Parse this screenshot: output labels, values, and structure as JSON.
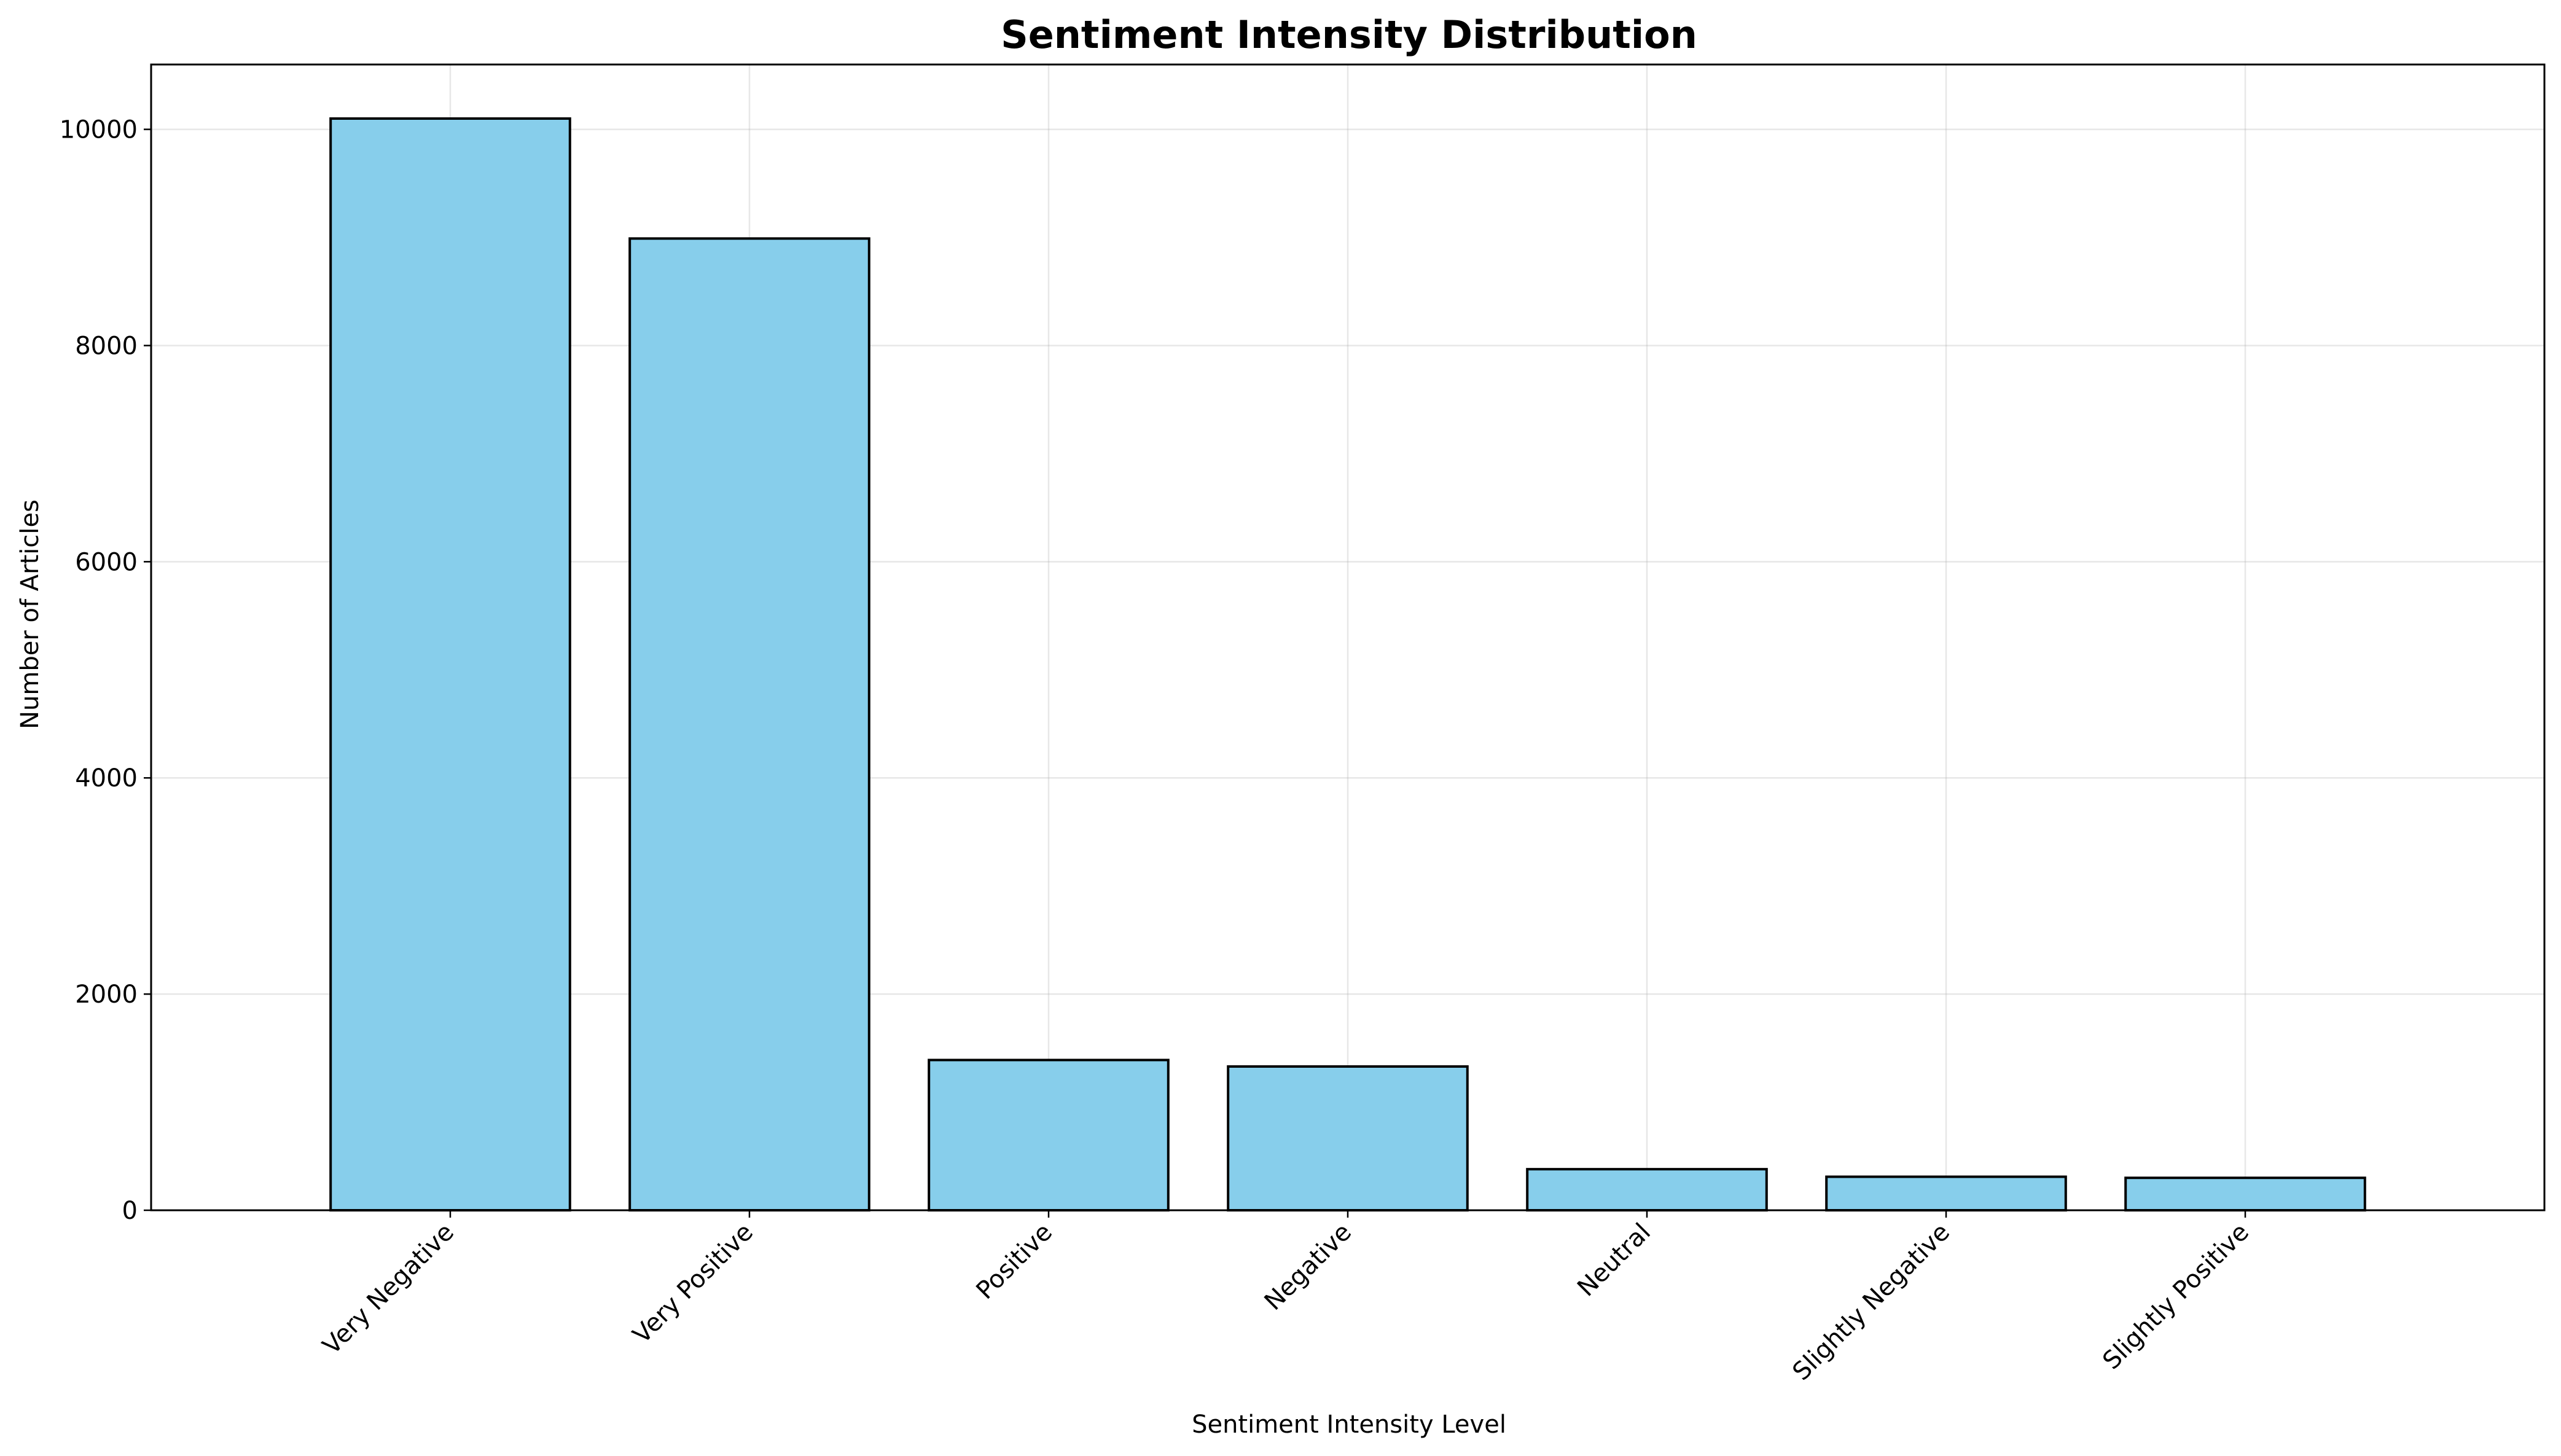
{
  "chart_data": {
    "type": "bar",
    "title": "Sentiment Intensity Distribution",
    "xlabel": "Sentiment Intensity Level",
    "ylabel": "Number of Articles",
    "categories": [
      "Very Negative",
      "Very Positive",
      "Positive",
      "Negative",
      "Neutral",
      "Slightly Negative",
      "Slightly Positive"
    ],
    "values": [
      10100,
      8990,
      1390,
      1330,
      380,
      310,
      300
    ],
    "ylim": [
      0,
      10600
    ],
    "yticks": [
      0,
      2000,
      4000,
      6000,
      8000,
      10000
    ],
    "grid": true,
    "bar_color": "#87CEEB",
    "edge_color": "#000000"
  }
}
